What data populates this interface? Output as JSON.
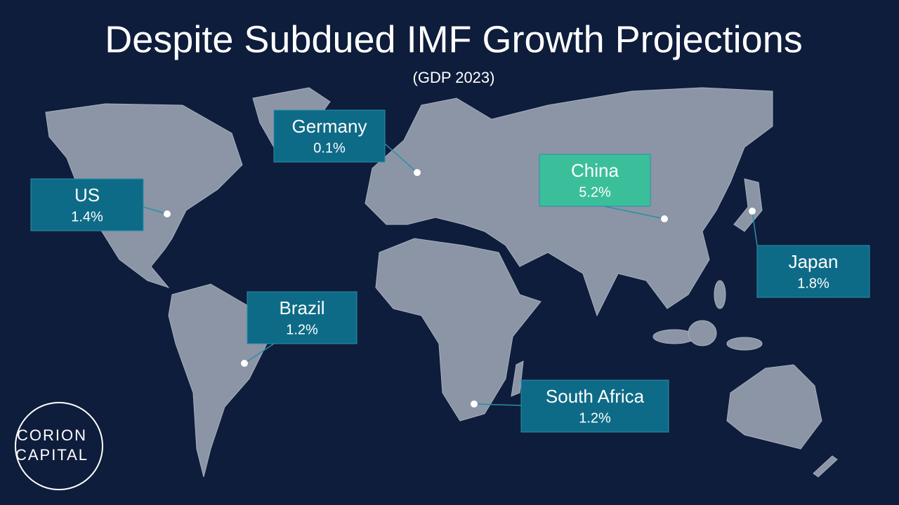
{
  "header": {
    "title": "Despite Subdued IMF Growth Projections",
    "subtitle": "(GDP 2023)"
  },
  "countries": [
    {
      "name": "Germany",
      "growth": "0.1%"
    },
    {
      "name": "US",
      "growth": "1.4%"
    },
    {
      "name": "China",
      "growth": "5.2%"
    },
    {
      "name": "Japan",
      "growth": "1.8%"
    },
    {
      "name": "Brazil",
      "growth": "1.2%"
    },
    {
      "name": "South Africa",
      "growth": "1.2%"
    }
  ],
  "logo": {
    "line1": "CORION",
    "line2": "CAPITAL"
  }
}
